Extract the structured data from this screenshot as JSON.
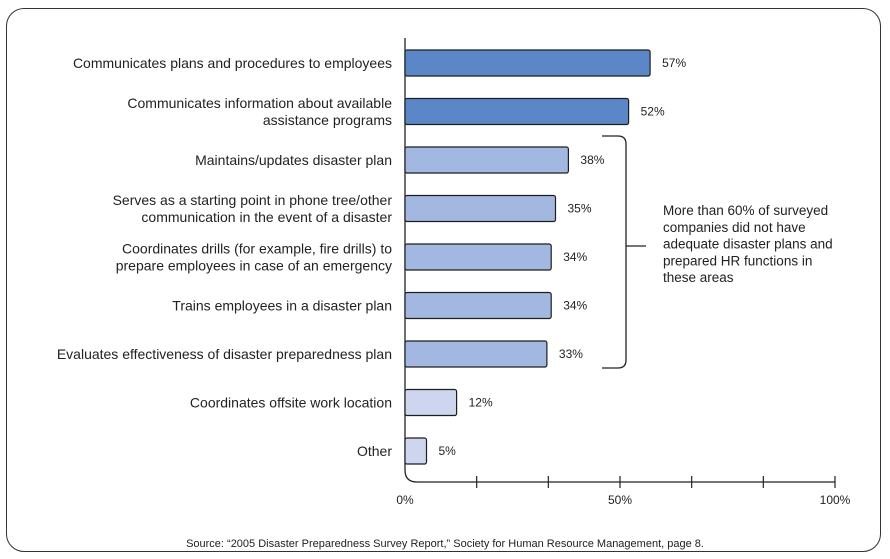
{
  "chart_data": {
    "type": "bar",
    "orientation": "horizontal",
    "categories": [
      [
        "Communicates plans and procedures to employees"
      ],
      [
        "Communicates information about available",
        "assistance programs"
      ],
      [
        "Maintains/updates disaster plan"
      ],
      [
        "Serves as a starting point in phone tree/other",
        "communication in the event of a disaster"
      ],
      [
        "Coordinates drills (for example, fire drills) to",
        "prepare employees in case of an emergency"
      ],
      [
        "Trains employees in a disaster plan"
      ],
      [
        "Evaluates effectiveness of disaster preparedness plan"
      ],
      [
        "Coordinates offsite work location"
      ],
      [
        "Other"
      ]
    ],
    "values": [
      57,
      52,
      38,
      35,
      34,
      34,
      33,
      12,
      5
    ],
    "value_labels": [
      "57%",
      "52%",
      "38%",
      "35%",
      "34%",
      "34%",
      "33%",
      "12%",
      "5%"
    ],
    "bar_colors": [
      "#5b87c9",
      "#5b87c9",
      "#a3b8e0",
      "#a3b8e0",
      "#a3b8e0",
      "#a3b8e0",
      "#a3b8e0",
      "#cdd6ee",
      "#cdd6ee"
    ],
    "xlim": [
      0,
      100
    ],
    "xticks": [
      0,
      50,
      100
    ],
    "xtick_labels": [
      "0%",
      "50%",
      "100%"
    ],
    "minor_ticks": [
      16.67,
      33.33,
      66.67,
      83.33
    ],
    "grid": false,
    "annotation": {
      "bracket_from_index": 2,
      "bracket_to_index": 6,
      "lines": [
        "More than 60% of surveyed",
        "companies did not have",
        "adequate disaster plans and",
        "prepared HR functions in",
        "these areas"
      ]
    },
    "source": "Source: “2005 Disaster Preparedness Survey Report,” Society for Human Resource Management, page 8."
  }
}
